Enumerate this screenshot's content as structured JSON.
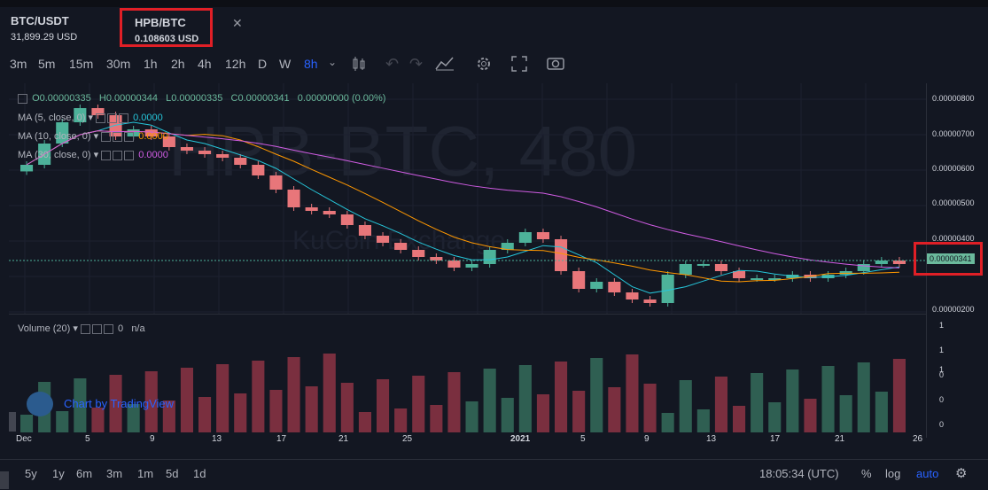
{
  "tabs": [
    {
      "symbol": "BTC/USDT",
      "price": "31,899.29 USD"
    },
    {
      "symbol": "HPB/BTC",
      "price": "0.108603 USD"
    }
  ],
  "tab_close": "✕",
  "toolbar": {
    "timeframes": [
      "3m",
      "5m",
      "15m",
      "30m",
      "1h",
      "2h",
      "4h",
      "12h",
      "D",
      "W",
      "8h"
    ],
    "active_timeframe": "8h",
    "icons": [
      "candles-icon",
      "undo-icon",
      "redo-icon",
      "compare-icon",
      "settings-icon",
      "fullscreen-icon",
      "snapshot-icon"
    ]
  },
  "legend": {
    "ohlc": {
      "o": "O0.00000335",
      "h": "H0.00000344",
      "l": "L0.00000335",
      "c": "C0.00000341",
      "change": "0.00000000 (0.00%)"
    },
    "ma": [
      {
        "label": "MA (5, close, 0)",
        "value": "0.0000",
        "color": "#26c6da"
      },
      {
        "label": "MA (10, close, 0)",
        "value": "0.0000",
        "color": "#ff9800"
      },
      {
        "label": "MA (30, close, 0)",
        "value": "0.0000",
        "color": "#d05ce3"
      }
    ],
    "volume": {
      "label": "Volume (20)",
      "value": "0",
      "extra": "n/a"
    }
  },
  "watermark": {
    "main": "HPB-BTC, 480",
    "sub": "KuCoin Exchange"
  },
  "price_axis": [
    "0.00000800",
    "0.00000700",
    "0.00000600",
    "0.00000500",
    "0.00000400",
    "0.00000200"
  ],
  "last_price": "0.00000341",
  "volume_axis": [
    "1",
    "1",
    "1",
    "0",
    "0",
    "0"
  ],
  "x_axis": [
    "Dec",
    "5",
    "9",
    "13",
    "17",
    "21",
    "25",
    "2021",
    "5",
    "9",
    "13",
    "17",
    "21",
    "26"
  ],
  "tradingview": "Chart by TradingView",
  "bottom": {
    "ranges": [
      "5y",
      "1y",
      "6m",
      "3m",
      "1m",
      "5d",
      "1d"
    ],
    "time": "18:05:34 (UTC)",
    "percent": "%",
    "log": "log",
    "auto": "auto"
  },
  "colors": {
    "up": "#4db29a",
    "down": "#e8767a",
    "vol_up": "#2f5f52",
    "vol_down": "#7a2f3f",
    "ma5": "#26c6da",
    "ma10": "#ff9800",
    "ma30": "#d05ce3"
  },
  "chart_data": {
    "type": "candlestick",
    "title": "HPB/BTC",
    "xlabel": "",
    "ylabel": "",
    "ylim": [
      2e-06,
      8.5e-06
    ],
    "series": [
      {
        "name": "close",
        "values": [
          6.2e-06,
          6.8e-06,
          7.4e-06,
          7.8e-06,
          7.6e-06,
          7e-06,
          7.2e-06,
          7e-06,
          6.7e-06,
          6.6e-06,
          6.5e-06,
          6.4e-06,
          6.2e-06,
          5.9e-06,
          5.5e-06,
          5e-06,
          4.9e-06,
          4.8e-06,
          4.5e-06,
          4.2e-06,
          4e-06,
          3.8e-06,
          3.6e-06,
          3.5e-06,
          3.3e-06,
          3.4e-06,
          3.8e-06,
          4e-06,
          4.3e-06,
          4.1e-06,
          3.2e-06,
          2.7e-06,
          2.9e-06,
          2.6e-06,
          2.4e-06,
          2.3e-06,
          3.1e-06,
          3.4e-06,
          3.4e-06,
          3.2e-06,
          3e-06,
          3e-06,
          3e-06,
          3.1e-06,
          3e-06,
          3.1e-06,
          3.2e-06,
          3.4e-06,
          3.5e-06,
          3.4e-06
        ]
      }
    ]
  }
}
